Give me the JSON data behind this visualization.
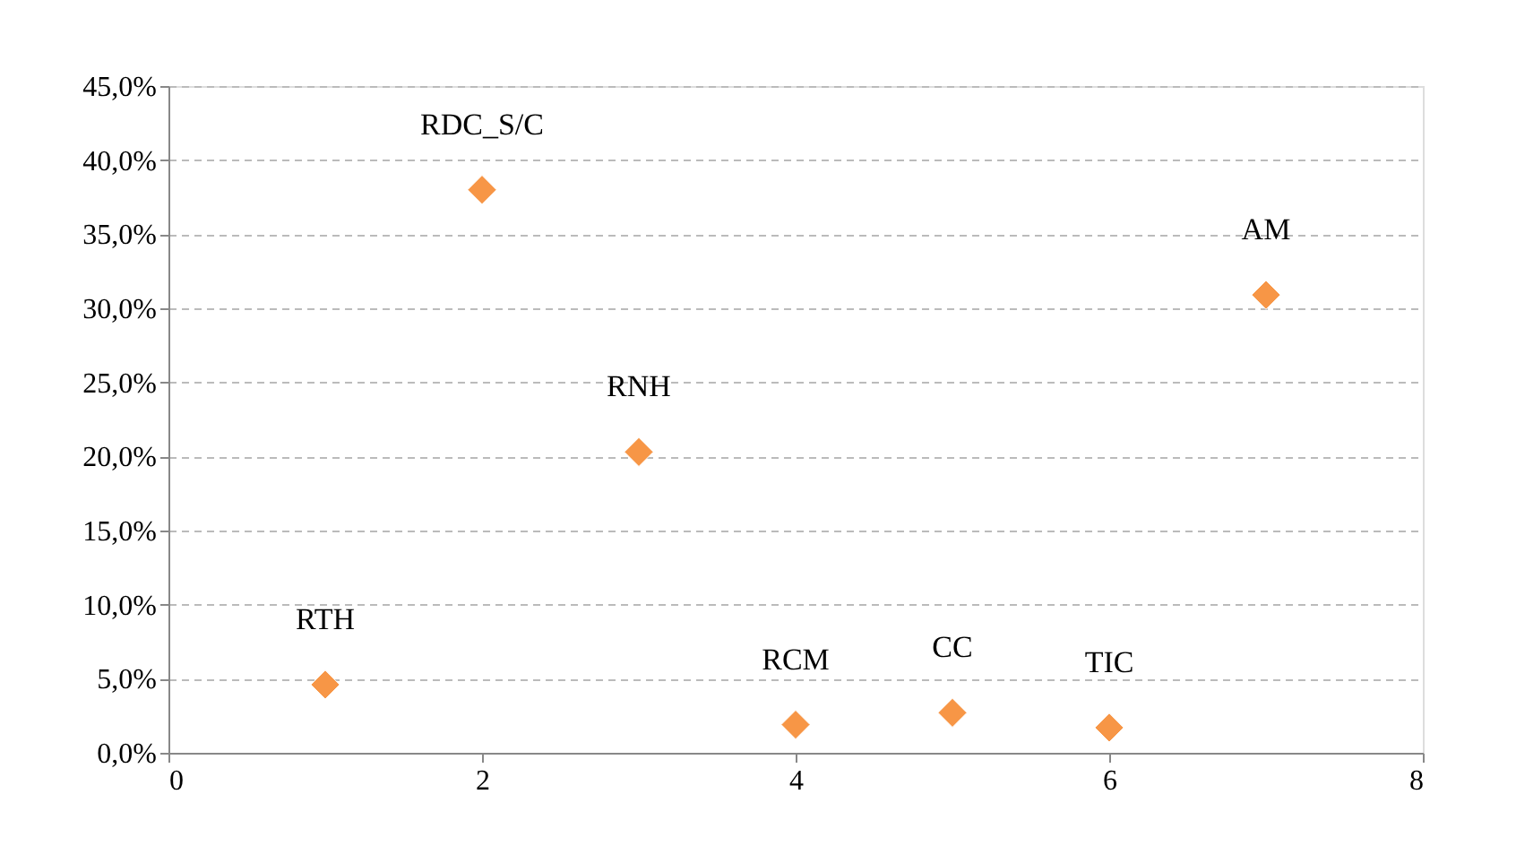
{
  "chart_data": {
    "type": "scatter",
    "x": [
      1,
      2,
      3,
      4,
      5,
      6,
      7
    ],
    "series": [
      {
        "color": "#f79646",
        "values": [
          4.6,
          38.0,
          20.3,
          1.9,
          2.7,
          1.7,
          30.9
        ]
      }
    ],
    "marker": "diamond",
    "xlim": [
      0,
      8
    ],
    "xticks": [
      0,
      2,
      4,
      6,
      8
    ],
    "ylim": [
      0,
      45
    ],
    "yticks": [
      {
        "value": 0,
        "label": "0,0%"
      },
      {
        "value": 5,
        "label": "5,0%"
      },
      {
        "value": 10,
        "label": "10,0%"
      },
      {
        "value": 15,
        "label": "15,0%"
      },
      {
        "value": 20,
        "label": "20,0%"
      },
      {
        "value": 25,
        "label": "25,0%"
      },
      {
        "value": 30,
        "label": "30,0%"
      },
      {
        "value": 35,
        "label": "35,0%"
      },
      {
        "value": 40,
        "label": "40,0%"
      },
      {
        "value": 45,
        "label": "45,0%"
      }
    ],
    "grid": "y",
    "annotations": [
      {
        "text": "RTH",
        "x": 1,
        "y": 4.6
      },
      {
        "text": "RDC_S/C",
        "x": 2,
        "y": 38.0
      },
      {
        "text": "RNH",
        "x": 3,
        "y": 20.3
      },
      {
        "text": "RCM",
        "x": 4,
        "y": 1.9
      },
      {
        "text": "CC",
        "x": 5,
        "y": 2.7
      },
      {
        "text": "TIC",
        "x": 6,
        "y": 1.7
      },
      {
        "text": "AM",
        "x": 7,
        "y": 30.9
      }
    ]
  }
}
